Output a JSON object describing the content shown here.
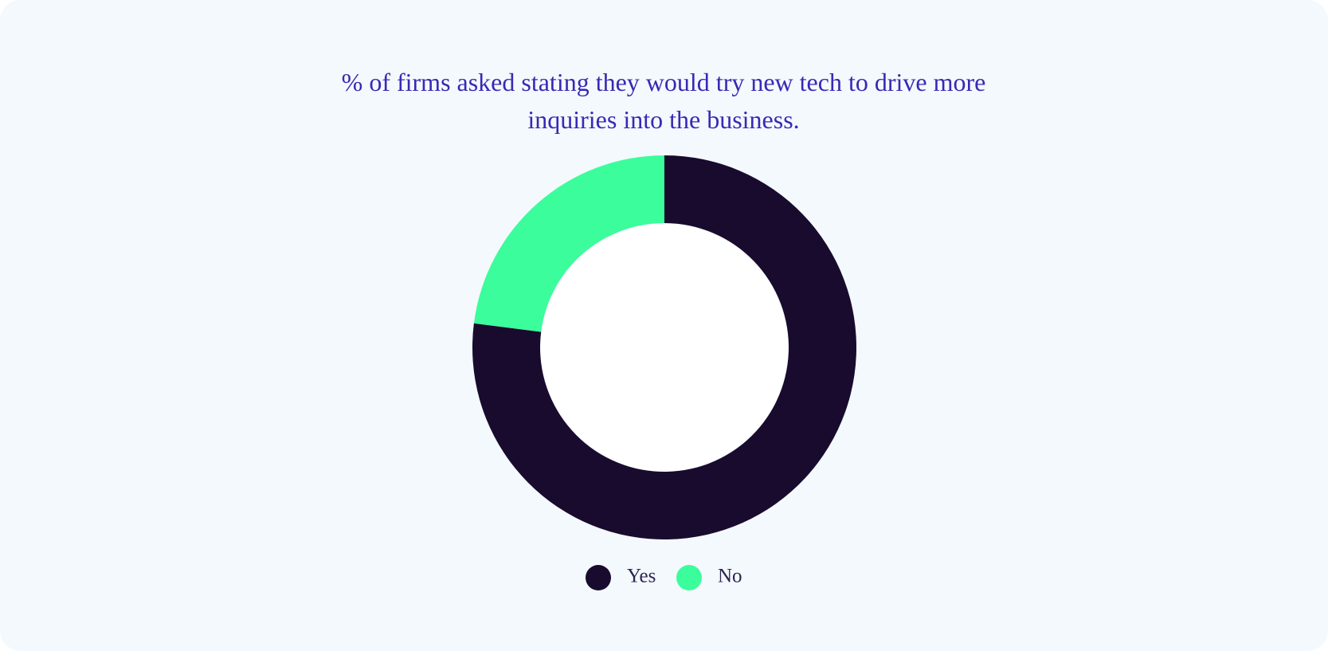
{
  "chart_data": {
    "type": "donut",
    "title": "% of firms asked stating they would try new tech to drive more inquiries into the business.",
    "categories": [
      "Yes",
      "No"
    ],
    "values": [
      77,
      23
    ],
    "colors": [
      "#190b2e",
      "#3bfd9b"
    ],
    "legend": "bottom"
  }
}
